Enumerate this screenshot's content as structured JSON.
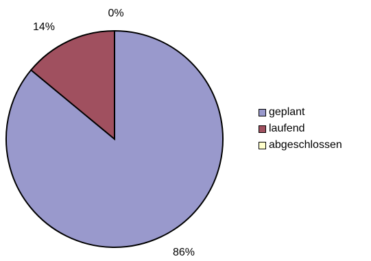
{
  "chart_data": {
    "type": "pie",
    "title": "",
    "slices": [
      {
        "label": "geplant",
        "value": 86,
        "value_label": "86%",
        "color": "#9999CC"
      },
      {
        "label": "laufend",
        "value": 14,
        "value_label": "14%",
        "color": "#A0505F"
      },
      {
        "label": "abgeschlossen",
        "value": 0,
        "value_label": "0%",
        "color": "#FFFFCC"
      }
    ],
    "legend_position": "right"
  }
}
